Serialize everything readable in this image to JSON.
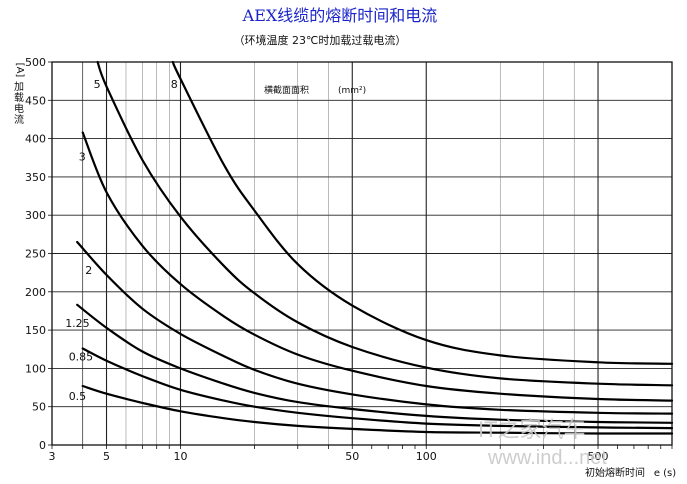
{
  "title": "AEX线缆的熔断时间和电流",
  "subtitle": "（环境温度 23℃时加载过载电流）",
  "chart_data": {
    "type": "line",
    "title": "AEX线缆的熔断时间和电流",
    "subtitle": "（环境温度 23℃时加载过载电流）",
    "xlabel": "初始熔断时间",
    "xunit": "e (s)",
    "ylabel": "加载电流",
    "yunit": "[A]",
    "xscale": "log",
    "xlim": [
      3,
      1000
    ],
    "ylim": [
      0,
      500
    ],
    "xticks": [
      3,
      5,
      10,
      50,
      100,
      500
    ],
    "yticks": [
      0,
      50,
      100,
      150,
      200,
      250,
      300,
      350,
      400,
      450,
      500
    ],
    "annotation": "横截面面积",
    "annotation_unit": "(mm²)",
    "grid": true,
    "series": [
      {
        "name": "0.5",
        "x": [
          4,
          5,
          7,
          10,
          15,
          20,
          30,
          50,
          100,
          200,
          500,
          1000
        ],
        "values": [
          77,
          67,
          55,
          44,
          35,
          30,
          25,
          21,
          17,
          16,
          15,
          15
        ]
      },
      {
        "name": "0.85",
        "x": [
          4,
          5,
          7,
          10,
          15,
          20,
          30,
          50,
          100,
          200,
          500,
          1000
        ],
        "values": [
          126,
          110,
          90,
          72,
          58,
          50,
          42,
          35,
          28,
          25,
          23,
          22
        ]
      },
      {
        "name": "1.25",
        "x": [
          3.8,
          5,
          7,
          10,
          15,
          20,
          30,
          50,
          100,
          200,
          500,
          1000
        ],
        "values": [
          183,
          153,
          122,
          100,
          80,
          68,
          56,
          47,
          38,
          33,
          30,
          29
        ]
      },
      {
        "name": "2",
        "x": [
          3.8,
          5,
          7,
          10,
          15,
          20,
          30,
          50,
          100,
          200,
          500,
          1000
        ],
        "values": [
          265,
          222,
          178,
          145,
          116,
          98,
          80,
          66,
          53,
          46,
          42,
          41
        ]
      },
      {
        "name": "3",
        "x": [
          4,
          5,
          7,
          10,
          15,
          20,
          30,
          50,
          100,
          200,
          500,
          1000
        ],
        "values": [
          408,
          330,
          260,
          210,
          168,
          144,
          118,
          97,
          77,
          67,
          60,
          58
        ]
      },
      {
        "name": "5",
        "x": [
          4.6,
          5,
          7,
          10,
          15,
          20,
          30,
          50,
          100,
          200,
          500,
          1000
        ],
        "values": [
          500,
          468,
          372,
          298,
          234,
          198,
          160,
          128,
          101,
          87,
          80,
          78
        ]
      },
      {
        "name": "8",
        "x": [
          9.3,
          10,
          15,
          20,
          30,
          50,
          100,
          200,
          500,
          1000
        ],
        "values": [
          500,
          478,
          366,
          306,
          236,
          182,
          137,
          117,
          108,
          106
        ]
      }
    ]
  },
  "watermark": {
    "brand": "IT之家汽车",
    "url": "www.ind...net"
  }
}
